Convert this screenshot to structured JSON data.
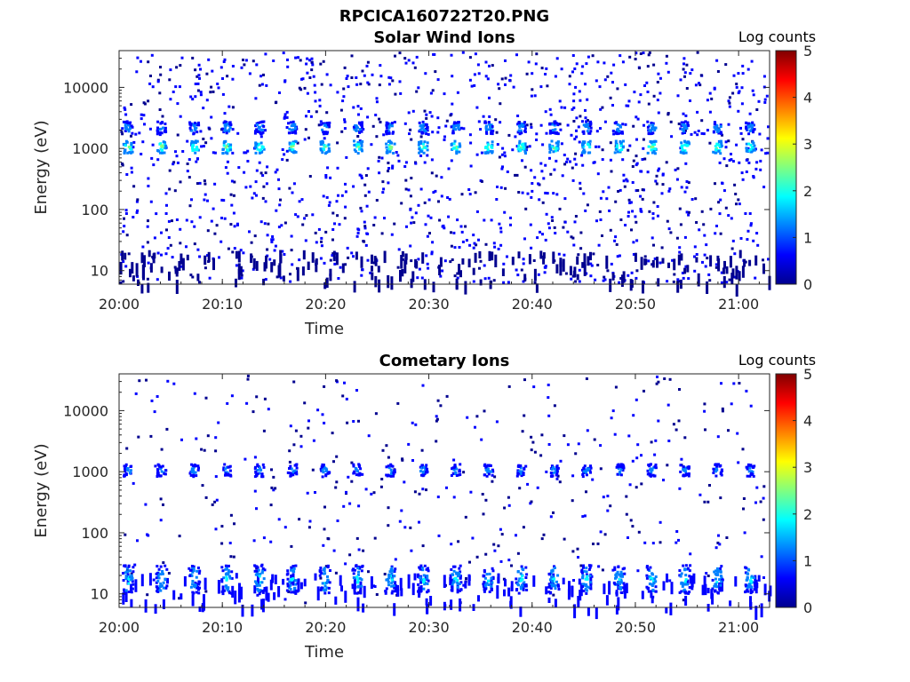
{
  "figure_title": "RPCICA160722T20.PNG",
  "colorbar_colors": [
    "#00008f",
    "#0000ff",
    "#0080ff",
    "#00ffff",
    "#80ff80",
    "#ffff00",
    "#ff8000",
    "#ff0000",
    "#800000"
  ],
  "chart_data": [
    {
      "type": "heatmap",
      "title": "Solar Wind Ions",
      "xlabel": "Time",
      "ylabel": "Energy (eV)",
      "x_ticks": [
        "20:00",
        "20:10",
        "20:20",
        "20:30",
        "20:40",
        "20:50",
        "21:00"
      ],
      "x_range": [
        "20:00",
        "21:03"
      ],
      "y_scale": "log",
      "y_ticks": [
        10,
        100,
        1000,
        10000
      ],
      "y_range": [
        6,
        40000
      ],
      "colorbar": {
        "label": "Log counts",
        "ticks": [
          0,
          1,
          2,
          3,
          4,
          5
        ],
        "range": [
          0,
          5
        ]
      },
      "sweep_times": [
        "20:00:45",
        "20:04:00",
        "20:07:10",
        "20:10:20",
        "20:13:30",
        "20:16:40",
        "20:19:50",
        "20:23:00",
        "20:26:10",
        "20:29:20",
        "20:32:30",
        "20:35:40",
        "20:38:50",
        "20:42:00",
        "20:45:10",
        "20:48:20",
        "20:51:30",
        "20:54:40",
        "20:57:50",
        "21:01:00"
      ],
      "peaks": [
        {
          "energy_eV": 1100,
          "log_counts": 2.6
        },
        {
          "energy_eV": 2300,
          "log_counts": 1.6
        }
      ],
      "background": {
        "energy_eV_range": [
          6,
          40000
        ],
        "log_counts": 0.2
      }
    },
    {
      "type": "heatmap",
      "title": "Cometary Ions",
      "xlabel": "Time",
      "ylabel": "Energy (eV)",
      "x_ticks": [
        "20:00",
        "20:10",
        "20:20",
        "20:30",
        "20:40",
        "20:50",
        "21:00"
      ],
      "x_range": [
        "20:00",
        "21:03"
      ],
      "y_scale": "log",
      "y_ticks": [
        10,
        100,
        1000,
        10000
      ],
      "y_range": [
        6,
        40000
      ],
      "colorbar": {
        "label": "Log counts",
        "ticks": [
          0,
          1,
          2,
          3,
          4,
          5
        ],
        "range": [
          0,
          5
        ]
      },
      "sweep_times": [
        "20:00:45",
        "20:04:00",
        "20:07:10",
        "20:10:20",
        "20:13:30",
        "20:16:40",
        "20:19:50",
        "20:23:00",
        "20:26:10",
        "20:29:20",
        "20:32:30",
        "20:35:40",
        "20:38:50",
        "20:42:00",
        "20:45:10",
        "20:48:20",
        "20:51:30",
        "20:54:40",
        "20:57:50",
        "21:01:00"
      ],
      "peaks": [
        {
          "energy_eV": 1100,
          "log_counts": 1.4
        },
        {
          "energy_eV": 18,
          "log_counts": 1.9
        }
      ],
      "background": {
        "energy_eV_range": [
          6,
          40000
        ],
        "log_counts": 0.1
      }
    }
  ]
}
